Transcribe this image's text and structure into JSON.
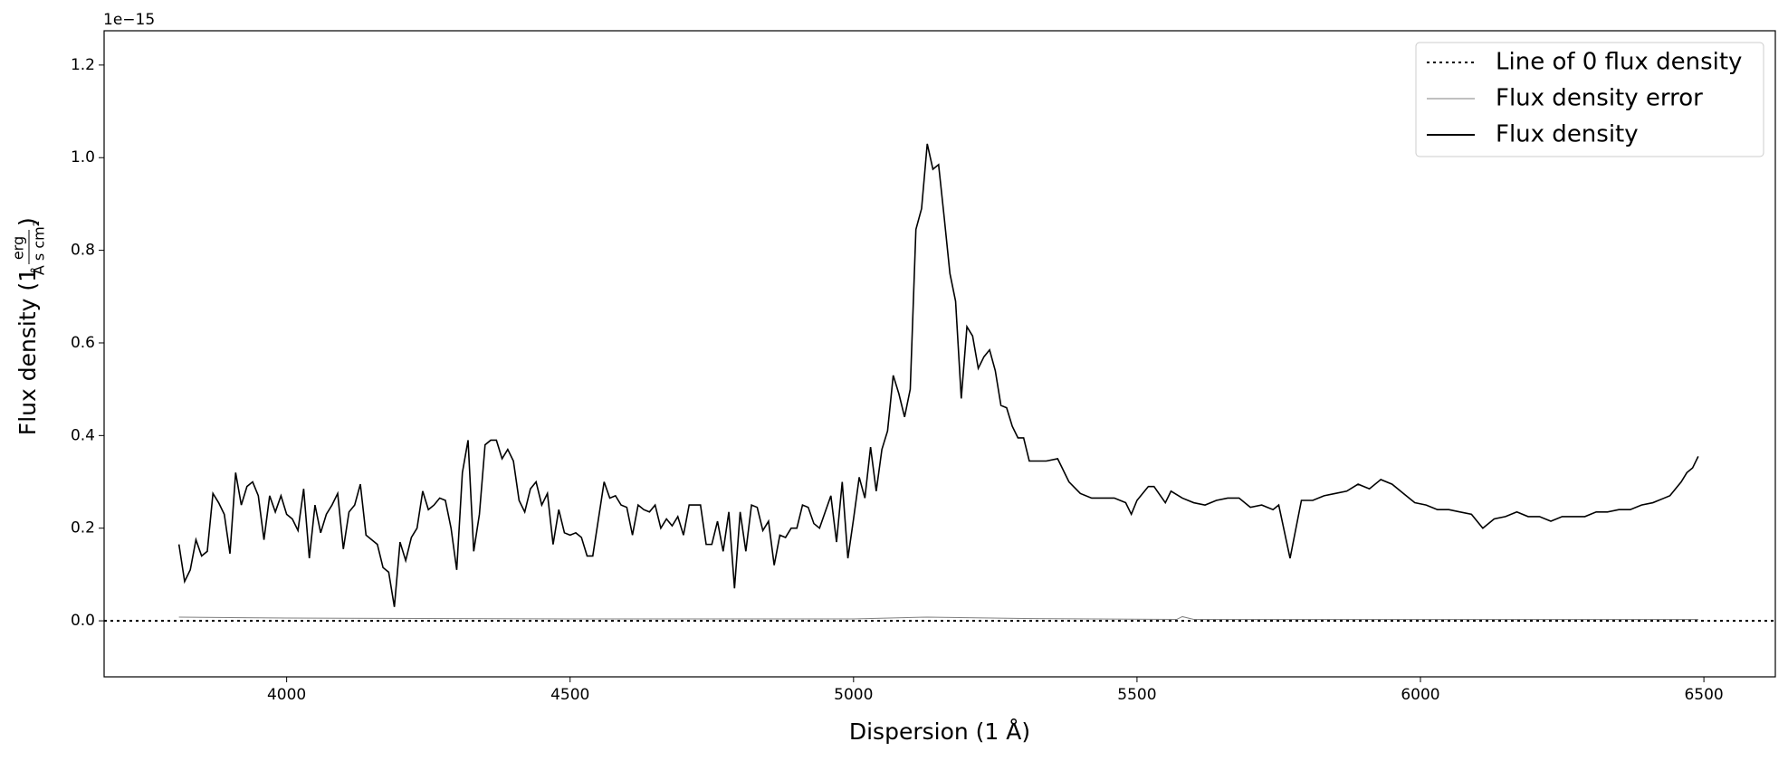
{
  "chart_data": {
    "type": "line",
    "offset_label": "1e−15",
    "xlabel": "Dispersion (1 Å)",
    "ylabel": {
      "text": "Flux density (1",
      "numerator": "erg",
      "denominator": "Å s cm²",
      "close": ")"
    },
    "xlim": [
      3678,
      6626
    ],
    "ylim": [
      -0.121,
      1.274
    ],
    "xticks": [
      4000,
      4500,
      5000,
      5500,
      6000,
      6500
    ],
    "yticks": [
      {
        "value": 0,
        "label": "0.0"
      },
      {
        "value": 0.2,
        "label": "0.2"
      },
      {
        "value": 0.4,
        "label": "0.4"
      },
      {
        "value": 0.6,
        "label": "0.6"
      },
      {
        "value": 0.8,
        "label": "0.8"
      },
      {
        "value": 1.0,
        "label": "1.0"
      },
      {
        "value": 1.2,
        "label": "1.2"
      }
    ],
    "legend": "upper right",
    "series": [
      {
        "name": "Line of 0 flux density",
        "color": "#000000",
        "style": "dotted",
        "y": 0
      },
      {
        "name": "Flux density error",
        "color": "#808080",
        "style": "solid",
        "x": [
          3810,
          4000,
          4500,
          5000,
          5130,
          5300,
          5570,
          5580,
          5600,
          6000,
          6490
        ],
        "values": [
          0.008,
          0.006,
          0.004,
          0.004,
          0.008,
          0.005,
          0.003,
          0.009,
          0.003,
          0.003,
          0.003
        ]
      },
      {
        "name": "Flux density",
        "color": "#000000",
        "style": "solid",
        "x": [
          3810,
          3820,
          3830,
          3840,
          3850,
          3860,
          3870,
          3880,
          3890,
          3900,
          3910,
          3920,
          3930,
          3940,
          3950,
          3960,
          3970,
          3980,
          3990,
          4000,
          4010,
          4020,
          4030,
          4040,
          4050,
          4060,
          4070,
          4080,
          4090,
          4100,
          4110,
          4120,
          4130,
          4140,
          4150,
          4160,
          4170,
          4180,
          4190,
          4200,
          4210,
          4220,
          4230,
          4240,
          4250,
          4260,
          4270,
          4280,
          4290,
          4300,
          4310,
          4320,
          4330,
          4340,
          4350,
          4360,
          4370,
          4380,
          4390,
          4400,
          4410,
          4420,
          4430,
          4440,
          4450,
          4460,
          4470,
          4480,
          4490,
          4500,
          4510,
          4520,
          4530,
          4540,
          4550,
          4560,
          4570,
          4580,
          4590,
          4600,
          4610,
          4620,
          4630,
          4640,
          4650,
          4660,
          4670,
          4680,
          4690,
          4700,
          4710,
          4720,
          4730,
          4740,
          4750,
          4760,
          4770,
          4780,
          4790,
          4800,
          4810,
          4820,
          4830,
          4840,
          4850,
          4860,
          4870,
          4880,
          4890,
          4900,
          4910,
          4920,
          4930,
          4940,
          4950,
          4960,
          4970,
          4980,
          4990,
          5000,
          5010,
          5020,
          5030,
          5040,
          5050,
          5060,
          5070,
          5080,
          5090,
          5100,
          5110,
          5120,
          5130,
          5140,
          5150,
          5160,
          5170,
          5180,
          5190,
          5200,
          5210,
          5220,
          5230,
          5240,
          5250,
          5260,
          5270,
          5280,
          5290,
          5300,
          5310,
          5320,
          5340,
          5360,
          5380,
          5400,
          5420,
          5440,
          5460,
          5480,
          5490,
          5500,
          5520,
          5530,
          5550,
          5560,
          5580,
          5600,
          5620,
          5640,
          5660,
          5680,
          5700,
          5720,
          5740,
          5750,
          5770,
          5790,
          5810,
          5830,
          5850,
          5870,
          5890,
          5910,
          5930,
          5950,
          5970,
          5990,
          6010,
          6030,
          6050,
          6070,
          6090,
          6110,
          6130,
          6150,
          6170,
          6190,
          6210,
          6230,
          6250,
          6270,
          6290,
          6310,
          6330,
          6350,
          6370,
          6390,
          6410,
          6430,
          6440,
          6460,
          6470,
          6480,
          6490
        ],
        "values": [
          0.165,
          0.085,
          0.11,
          0.175,
          0.14,
          0.15,
          0.275,
          0.255,
          0.23,
          0.145,
          0.32,
          0.25,
          0.29,
          0.3,
          0.27,
          0.175,
          0.27,
          0.235,
          0.27,
          0.23,
          0.22,
          0.195,
          0.285,
          0.135,
          0.25,
          0.19,
          0.23,
          0.25,
          0.275,
          0.155,
          0.235,
          0.25,
          0.295,
          0.185,
          0.175,
          0.165,
          0.115,
          0.105,
          0.03,
          0.17,
          0.13,
          0.18,
          0.2,
          0.28,
          0.24,
          0.25,
          0.265,
          0.26,
          0.2,
          0.11,
          0.32,
          0.39,
          0.15,
          0.23,
          0.38,
          0.39,
          0.39,
          0.35,
          0.37,
          0.345,
          0.26,
          0.235,
          0.285,
          0.3,
          0.25,
          0.275,
          0.165,
          0.24,
          0.19,
          0.185,
          0.19,
          0.18,
          0.14,
          0.14,
          0.22,
          0.3,
          0.265,
          0.27,
          0.25,
          0.245,
          0.185,
          0.25,
          0.24,
          0.235,
          0.25,
          0.2,
          0.22,
          0.205,
          0.225,
          0.185,
          0.25,
          0.25,
          0.25,
          0.165,
          0.165,
          0.215,
          0.15,
          0.235,
          0.07,
          0.235,
          0.15,
          0.25,
          0.245,
          0.195,
          0.215,
          0.12,
          0.185,
          0.18,
          0.2,
          0.2,
          0.25,
          0.245,
          0.21,
          0.2,
          0.235,
          0.27,
          0.17,
          0.3,
          0.135,
          0.22,
          0.31,
          0.265,
          0.375,
          0.28,
          0.37,
          0.41,
          0.53,
          0.49,
          0.44,
          0.5,
          0.845,
          0.89,
          1.03,
          0.975,
          0.985,
          0.87,
          0.75,
          0.69,
          0.48,
          0.635,
          0.615,
          0.545,
          0.57,
          0.585,
          0.54,
          0.465,
          0.46,
          0.42,
          0.395,
          0.395,
          0.345,
          0.345,
          0.345,
          0.35,
          0.3,
          0.275,
          0.265,
          0.265,
          0.265,
          0.255,
          0.23,
          0.26,
          0.29,
          0.29,
          0.255,
          0.28,
          0.265,
          0.255,
          0.25,
          0.26,
          0.265,
          0.265,
          0.245,
          0.25,
          0.24,
          0.25,
          0.135,
          0.26,
          0.26,
          0.27,
          0.275,
          0.28,
          0.295,
          0.285,
          0.305,
          0.295,
          0.275,
          0.255,
          0.25,
          0.24,
          0.24,
          0.235,
          0.23,
          0.2,
          0.22,
          0.225,
          0.235,
          0.225,
          0.225,
          0.215,
          0.225,
          0.225,
          0.225,
          0.235,
          0.235,
          0.24,
          0.24,
          0.25,
          0.255,
          0.265,
          0.27,
          0.3,
          0.32,
          0.33,
          0.355
        ]
      }
    ]
  }
}
